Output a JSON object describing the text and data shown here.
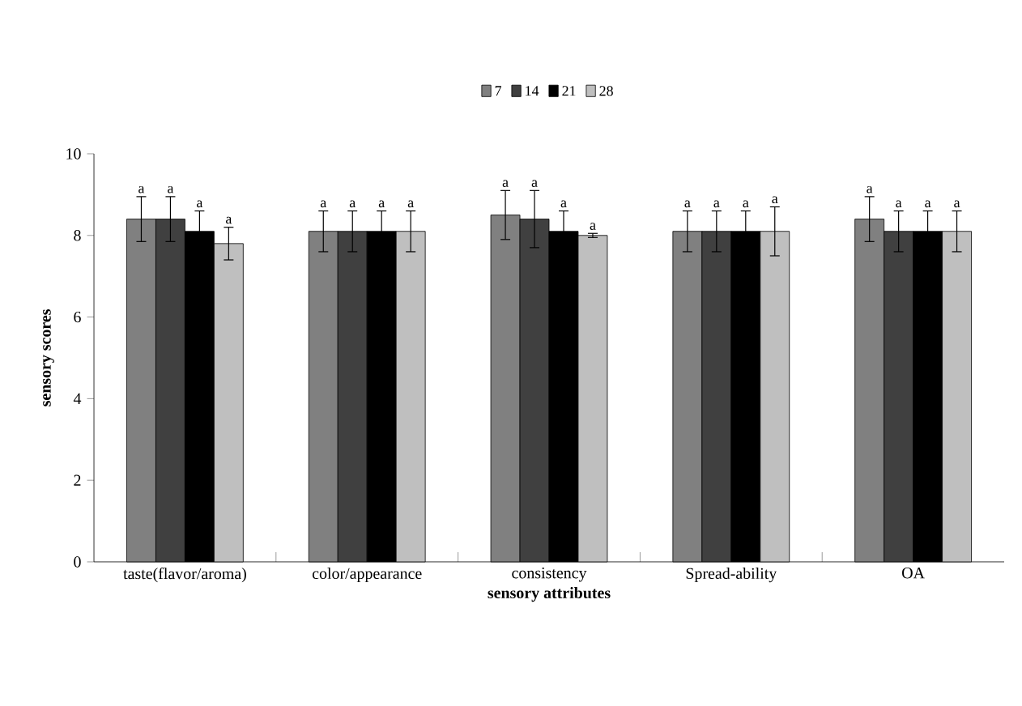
{
  "chart_data": {
    "type": "bar",
    "xlabel": "sensory attributes",
    "ylabel": "sensory scores",
    "categories": [
      "taste(flavor/aroma)",
      "color/appearance",
      "consistency",
      "Spread-ability",
      "OA"
    ],
    "series": [
      {
        "name": "7",
        "color": "#808080",
        "values": [
          8.4,
          8.1,
          8.5,
          8.1,
          8.4
        ],
        "errors": [
          0.55,
          0.5,
          0.6,
          0.5,
          0.55
        ],
        "value_labels": [
          "a",
          "a",
          "a",
          "a",
          "a"
        ]
      },
      {
        "name": "14",
        "color": "#404040",
        "values": [
          8.4,
          8.1,
          8.4,
          8.1,
          8.1
        ],
        "errors": [
          0.55,
          0.5,
          0.7,
          0.5,
          0.5
        ],
        "value_labels": [
          "a",
          "a",
          "a",
          "a",
          "a"
        ]
      },
      {
        "name": "21",
        "color": "#000000",
        "values": [
          8.1,
          8.1,
          8.1,
          8.1,
          8.1
        ],
        "errors": [
          0.5,
          0.5,
          0.5,
          0.5,
          0.5
        ],
        "value_labels": [
          "a",
          "a",
          "a",
          "a",
          "a"
        ]
      },
      {
        "name": "28",
        "color": "#bfbfbf",
        "values": [
          7.8,
          8.1,
          8.0,
          8.1,
          8.1
        ],
        "errors": [
          0.4,
          0.5,
          0.05,
          0.6,
          0.5
        ],
        "value_labels": [
          "a",
          "a",
          "a",
          "a",
          "a"
        ]
      }
    ],
    "ylim": [
      0,
      10
    ],
    "yticks": [
      0,
      2,
      4,
      6,
      8,
      10
    ],
    "legend": "top",
    "grid": false
  }
}
